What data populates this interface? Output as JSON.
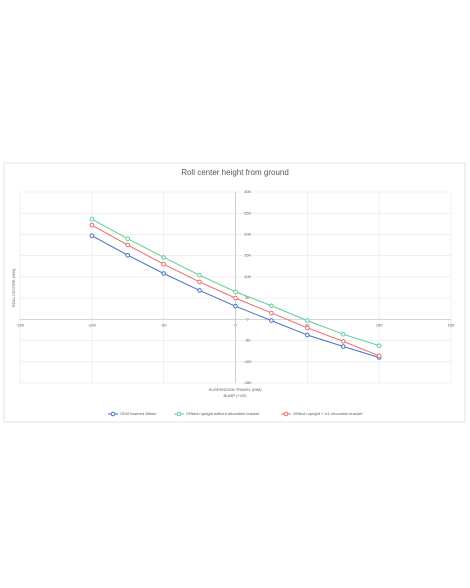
{
  "chart_data": {
    "type": "line",
    "title": "Roll center height from ground",
    "x_label": "SUSPENSION TRAVEL (MM)",
    "x_sublabel": "BUMP (+VE)",
    "y_label": "ROLL CENTRE (MM)",
    "x": [
      -100,
      -75,
      -50,
      -25,
      0,
      25,
      50,
      75,
      100
    ],
    "series": [
      {
        "name": "OEM lowered 68mm",
        "color": "#4472c4",
        "values": [
          197,
          151,
          108,
          68,
          31,
          -3,
          -37,
          -64,
          -90
        ]
      },
      {
        "name": "GRtech upright without relocation bracket",
        "color": "#5fcf95",
        "values": [
          236,
          190,
          146,
          104,
          65,
          32,
          -3,
          -35,
          -62
        ]
      },
      {
        "name": "GRtech upright + U1 relocation bracket",
        "color": "#ee6b6b",
        "values": [
          222,
          175,
          130,
          88,
          50,
          15,
          -20,
          -52,
          -86
        ]
      }
    ],
    "xlim": [
      -150,
      150
    ],
    "xticks": [
      -150,
      -100,
      -50,
      0,
      50,
      100,
      150
    ],
    "ylim": [
      -150,
      300
    ],
    "yticks": [
      -150,
      -100,
      -50,
      0,
      50,
      100,
      150,
      200,
      250,
      300
    ],
    "grid": true,
    "legend": "bottom"
  }
}
